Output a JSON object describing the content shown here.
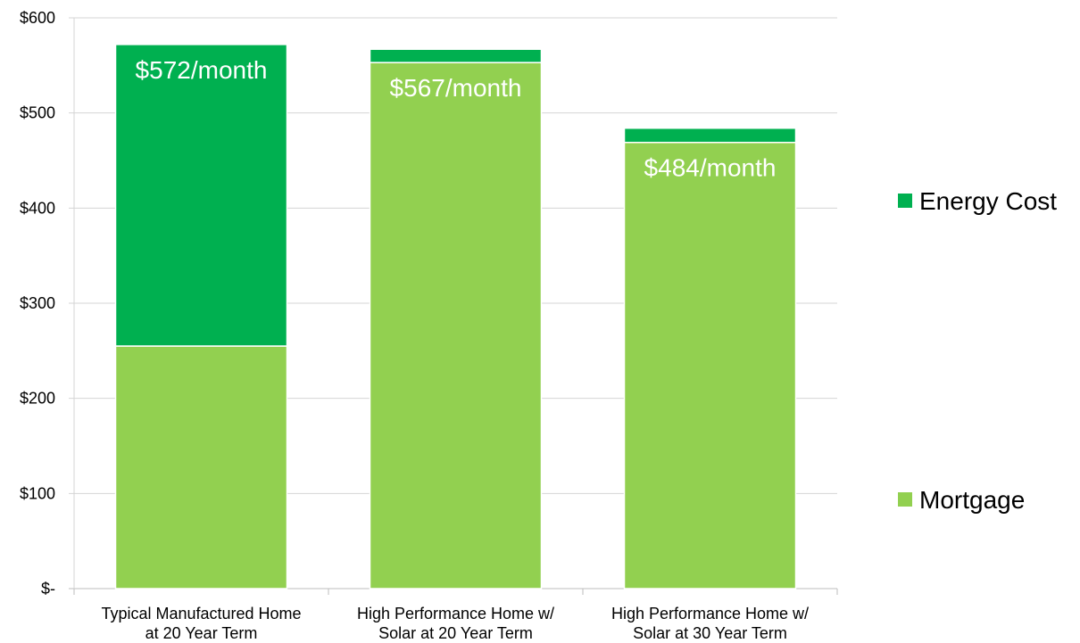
{
  "chart_data": {
    "type": "bar",
    "stacked": true,
    "categories": [
      [
        "Typical Manufactured Home",
        "at 20 Year Term"
      ],
      [
        "High Performance Home w/",
        "Solar at 20 Year Term"
      ],
      [
        "High Performance Home w/",
        "Solar at 30 Year Term"
      ]
    ],
    "series": [
      {
        "name": "Mortgage",
        "color": "#92d050",
        "values": [
          255,
          553,
          469
        ]
      },
      {
        "name": "Energy Cost",
        "color": "#00b050",
        "values": [
          317,
          14,
          15
        ]
      }
    ],
    "bar_labels": [
      "$572/month",
      "$567/month",
      "$484/month"
    ],
    "y_ticks": [
      {
        "value": 0,
        "label": "$-"
      },
      {
        "value": 100,
        "label": "$100"
      },
      {
        "value": 200,
        "label": "$200"
      },
      {
        "value": 300,
        "label": "$300"
      },
      {
        "value": 400,
        "label": "$400"
      },
      {
        "value": 500,
        "label": "$500"
      },
      {
        "value": 600,
        "label": "$600"
      }
    ],
    "ylim": [
      0,
      600
    ],
    "grid": true,
    "legend_position": "right",
    "legend_order": [
      "Energy Cost",
      "Mortgage"
    ]
  }
}
